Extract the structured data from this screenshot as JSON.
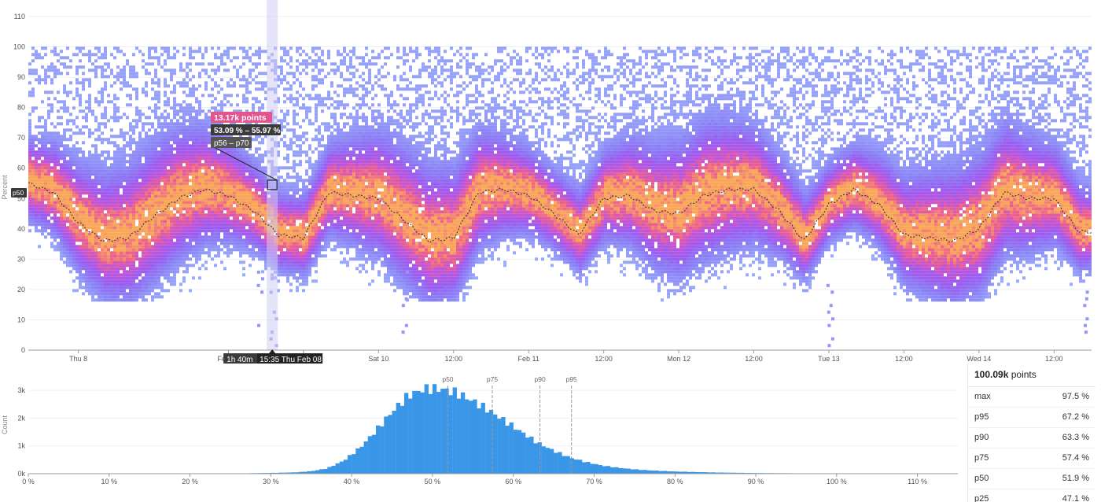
{
  "chart_data": [
    {
      "type": "heatmap",
      "title": "",
      "ylabel": "Percent",
      "ylim": [
        0,
        110
      ],
      "y_ticks": [
        "0",
        "10",
        "20",
        "30",
        "40",
        "50",
        "60",
        "70",
        "80",
        "90",
        "100",
        "110"
      ],
      "x_ticks": [
        "Thu 8",
        "Feb 09",
        "12:00",
        "Sat 10",
        "12:00",
        "Feb 11",
        "12:00",
        "Mon 12",
        "12:00",
        "Tue 13",
        "12:00",
        "Wed 14",
        "12:00"
      ],
      "x_tick_hours": [
        0,
        24,
        36,
        48,
        60,
        72,
        84,
        96,
        108,
        120,
        132,
        144,
        156
      ],
      "x_range_hours": [
        -8,
        162
      ],
      "color_scale": [
        "#9bb0fb",
        "#8a80f5",
        "#9b5cf0",
        "#c254d6",
        "#ec5f8c",
        "#f9a85a"
      ],
      "median_series": {
        "name": "p50",
        "x_hours": [
          -8,
          -4,
          0,
          4,
          8,
          12,
          16,
          20,
          24,
          28,
          32,
          36,
          40,
          44,
          48,
          52,
          56,
          60,
          64,
          68,
          72,
          76,
          80,
          84,
          88,
          92,
          96,
          100,
          104,
          108,
          112,
          116,
          120,
          124,
          128,
          132,
          136,
          140,
          144,
          148,
          152,
          156,
          160,
          162
        ],
        "values": [
          55,
          52,
          42,
          36,
          37,
          44,
          50,
          53,
          51,
          46,
          38,
          37,
          52,
          51,
          50,
          43,
          36,
          37,
          52,
          53,
          51,
          45,
          38,
          50,
          51,
          46,
          45,
          51,
          53,
          53,
          46,
          36,
          48,
          53,
          48,
          38,
          37,
          36,
          40,
          52,
          50,
          50,
          39,
          39
        ]
      },
      "annotations": {
        "crosshair_hover": {
          "points_label": "13.17k points",
          "range_label": "53.09 % – 55.97 %",
          "percentile_label": "p56 – p70",
          "x_hours": 31,
          "y_value": 54.5
        },
        "x_cursor_label": "15:35 Thu Feb 08",
        "x_cursor_hours": 31,
        "bucket_width_label": "1h 40m",
        "y_marker_label": "p50",
        "y_marker_value": 51.9
      }
    },
    {
      "type": "bar",
      "title": "",
      "xlabel": "",
      "ylabel": "Count",
      "xlim": [
        0,
        115
      ],
      "ylim": [
        0,
        3400
      ],
      "x_ticks": [
        "0 %",
        "10 %",
        "20 %",
        "30 %",
        "40 %",
        "50 %",
        "60 %",
        "70 %",
        "80 %",
        "90 %",
        "100 %",
        "110 %"
      ],
      "y_ticks": [
        "0k",
        "1k",
        "2k",
        "3k"
      ],
      "color": "#3a97e8",
      "distribution_points": [
        [
          25,
          0
        ],
        [
          27,
          15
        ],
        [
          29,
          25
        ],
        [
          31,
          35
        ],
        [
          33,
          50
        ],
        [
          35,
          90
        ],
        [
          37,
          200
        ],
        [
          39,
          480
        ],
        [
          41,
          950
        ],
        [
          43,
          1600
        ],
        [
          45,
          2300
        ],
        [
          47,
          2900
        ],
        [
          49,
          3150
        ],
        [
          51,
          3150
        ],
        [
          53,
          3000
        ],
        [
          55,
          2700
        ],
        [
          57,
          2350
        ],
        [
          59,
          1950
        ],
        [
          61,
          1550
        ],
        [
          63,
          1150
        ],
        [
          65,
          850
        ],
        [
          67,
          600
        ],
        [
          69,
          430
        ],
        [
          71,
          300
        ],
        [
          73,
          220
        ],
        [
          75,
          160
        ],
        [
          77,
          120
        ],
        [
          80,
          80
        ],
        [
          85,
          45
        ],
        [
          90,
          25
        ],
        [
          95,
          15
        ],
        [
          100,
          8
        ],
        [
          105,
          3
        ],
        [
          108,
          0
        ]
      ],
      "percentile_lines": [
        {
          "label": "p50",
          "value": 51.9
        },
        {
          "label": "p75",
          "value": 57.4
        },
        {
          "label": "p90",
          "value": 63.3
        },
        {
          "label": "p95",
          "value": 67.2
        }
      ]
    }
  ],
  "stats": {
    "total_value": "100.09k",
    "total_unit": "points",
    "rows": [
      {
        "label": "max",
        "value": "97.5 %"
      },
      {
        "label": "p95",
        "value": "67.2 %"
      },
      {
        "label": "p90",
        "value": "63.3 %"
      },
      {
        "label": "p75",
        "value": "57.4 %"
      },
      {
        "label": "p50",
        "value": "51.9 %"
      },
      {
        "label": "p25",
        "value": "47.1 %"
      }
    ]
  }
}
